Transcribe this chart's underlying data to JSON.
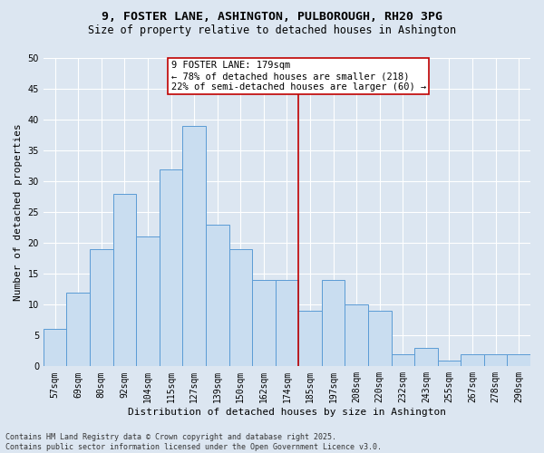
{
  "title": "9, FOSTER LANE, ASHINGTON, PULBOROUGH, RH20 3PG",
  "subtitle": "Size of property relative to detached houses in Ashington",
  "xlabel": "Distribution of detached houses by size in Ashington",
  "ylabel": "Number of detached properties",
  "footer_line1": "Contains HM Land Registry data © Crown copyright and database right 2025.",
  "footer_line2": "Contains public sector information licensed under the Open Government Licence v3.0.",
  "annotation_line0": "9 FOSTER LANE: 179sqm",
  "annotation_line1": "← 78% of detached houses are smaller (218)",
  "annotation_line2": "22% of semi-detached houses are larger (60) →",
  "bar_categories": [
    "57sqm",
    "69sqm",
    "80sqm",
    "92sqm",
    "104sqm",
    "115sqm",
    "127sqm",
    "139sqm",
    "150sqm",
    "162sqm",
    "174sqm",
    "185sqm",
    "197sqm",
    "208sqm",
    "220sqm",
    "232sqm",
    "243sqm",
    "255sqm",
    "267sqm",
    "278sqm",
    "290sqm"
  ],
  "bar_values": [
    6,
    12,
    19,
    28,
    21,
    32,
    39,
    23,
    19,
    14,
    14,
    9,
    14,
    10,
    9,
    2,
    3,
    1,
    2,
    2,
    2
  ],
  "bar_color": "#c9ddf0",
  "bar_edge_color": "#5b9bd5",
  "vline_x": 10.5,
  "vline_color": "#c00000",
  "annotation_box_edgecolor": "#c00000",
  "annotation_box_facecolor": "#ffffff",
  "background_color": "#dce6f1",
  "plot_bg_color": "#dce6f1",
  "ylim": [
    0,
    50
  ],
  "yticks": [
    0,
    5,
    10,
    15,
    20,
    25,
    30,
    35,
    40,
    45,
    50
  ],
  "grid_color": "#ffffff",
  "title_fontsize": 9.5,
  "subtitle_fontsize": 8.5,
  "ylabel_fontsize": 8,
  "xlabel_fontsize": 8,
  "tick_fontsize": 7,
  "annotation_fontsize": 7.5,
  "footer_fontsize": 6
}
